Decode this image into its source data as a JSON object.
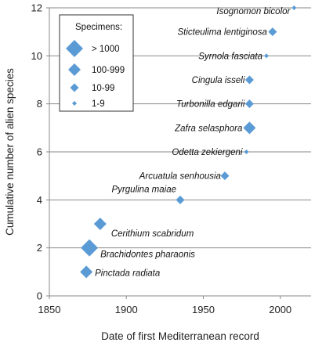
{
  "chart_data": {
    "type": "scatter",
    "title": "",
    "xlabel": "Date of first Mediterranean record",
    "ylabel": "Cumulative number of alien species",
    "xlim": [
      1850,
      2020
    ],
    "ylim": [
      0,
      12
    ],
    "x_ticks": [
      1850,
      1900,
      1950,
      2000
    ],
    "y_ticks": [
      0,
      2,
      4,
      6,
      8,
      10,
      12
    ],
    "grid": "horizontal",
    "marker_color": "#5b9bd5",
    "legend": {
      "title": "Specimens:",
      "placement": "top-left",
      "entries": [
        {
          "label": "> 1000",
          "size_class": "xl"
        },
        {
          "label": "100-999",
          "size_class": "l"
        },
        {
          "label": "10-99",
          "size_class": "m"
        },
        {
          "label": "1-9",
          "size_class": "s"
        }
      ]
    },
    "points": [
      {
        "species": "Pinctada radiata",
        "x": 1874,
        "y": 1,
        "size_class": "l"
      },
      {
        "species": "Brachidontes pharaonis",
        "x": 1876,
        "y": 2,
        "size_class": "xl"
      },
      {
        "species": "Cerithium scabridum",
        "x": 1883,
        "y": 3,
        "size_class": "l"
      },
      {
        "species": "Pyrgulina maiae",
        "x": 1935,
        "y": 4,
        "size_class": "m"
      },
      {
        "species": "Arcuatula senhousia",
        "x": 1964,
        "y": 5,
        "size_class": "m"
      },
      {
        "species": "Odetta zekiergeni",
        "x": 1978,
        "y": 6,
        "size_class": "s"
      },
      {
        "species": "Zafra selasphora",
        "x": 1980,
        "y": 7,
        "size_class": "l"
      },
      {
        "species": "Turbonilla edgarii",
        "x": 1980,
        "y": 8,
        "size_class": "m"
      },
      {
        "species": "Cingula isseli",
        "x": 1980,
        "y": 9,
        "size_class": "m"
      },
      {
        "species": "Syrnola fasciata",
        "x": 1991,
        "y": 10,
        "size_class": "s"
      },
      {
        "species": "Sticteulima lentiginosa",
        "x": 1995,
        "y": 11,
        "size_class": "m"
      },
      {
        "species": "Isognomon bicolor",
        "x": 2009,
        "y": 12,
        "size_class": "s"
      }
    ]
  }
}
